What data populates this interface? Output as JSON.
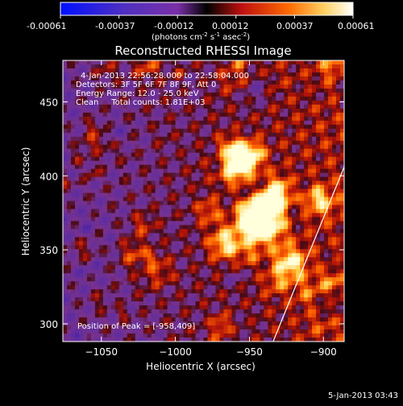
{
  "colorbar": {
    "ticks": [
      "-0.00061",
      "-0.00037",
      "-0.00012",
      "0.00012",
      "0.00037",
      "0.00061"
    ],
    "units_main": "(photons cm",
    "units_exp1": "-2",
    "units_s": " s",
    "units_exp2": "-1",
    "units_asec": " asec",
    "units_exp3": "-2",
    "units_close": ")"
  },
  "info": {
    "time_range": "4-Jan-2013 22:56:28.000 to 22:58:04.000",
    "detectors": "Detectors: 3F 5F 6F 7F 8F 9F, Att 0",
    "energy": "Energy Range: 12.0 - 25.0 keV",
    "clean": "Clean     Total counts: 1.81E+03",
    "peak": "Position of Peak = [-958,409]"
  },
  "footer": {
    "date": "5-Jan-2013 03:43"
  },
  "colors": {
    "background": "#000000",
    "text": "#ffffff",
    "limb": "#ffffff"
  },
  "chart_data": {
    "type": "heatmap",
    "title": "Reconstructed RHESSI Image",
    "xlabel": "Heliocentric X (arcsec)",
    "ylabel": "Heliocentric Y (arcsec)",
    "xlim": [
      -1076,
      -886
    ],
    "ylim": [
      288,
      478
    ],
    "xticks": [
      -1050,
      -1000,
      -950,
      -900
    ],
    "yticks": [
      300,
      350,
      400,
      450
    ],
    "xtick_labels": [
      "−1050",
      "−1000",
      "−950",
      "−900"
    ],
    "ytick_labels": [
      "300",
      "350",
      "400",
      "450"
    ],
    "colormap": "blue-white-red/fire",
    "value_range": [
      -0.00061,
      0.00061
    ],
    "peak": [
      -958,
      409
    ],
    "limb_line": [
      [
        -934,
        288
      ],
      [
        -886,
        406
      ]
    ]
  }
}
